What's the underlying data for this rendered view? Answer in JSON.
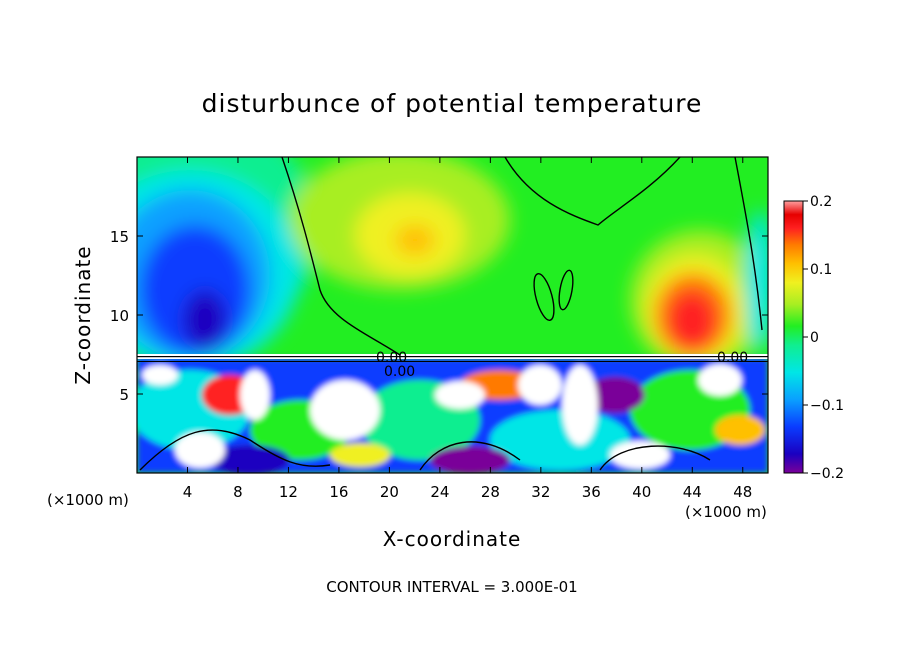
{
  "chart_data": {
    "type": "heatmap",
    "title": "disturbunce of potential temperature",
    "xlabel": "X-coordinate",
    "ylabel": "Z-coordinate",
    "x_unit": "(×1000 m)",
    "x_unit_right": "(×1000 m)",
    "footer": "CONTOUR INTERVAL = 3.000E-01",
    "xlim": [
      0,
      50
    ],
    "ylim": [
      0,
      20
    ],
    "x_ticks": [
      4,
      8,
      12,
      16,
      20,
      24,
      28,
      32,
      36,
      40,
      44,
      48
    ],
    "y_ticks": [
      5,
      10,
      15
    ],
    "colorbar": {
      "range": [
        -0.2,
        0.2
      ],
      "ticks": [
        {
          "value": 0.2,
          "label": "0.2"
        },
        {
          "value": 0.1,
          "label": "0.1"
        },
        {
          "value": 0,
          "label": "0"
        },
        {
          "value": -0.1,
          "label": "−0.1"
        },
        {
          "value": -0.2,
          "label": "−0.2"
        }
      ]
    },
    "contour_labels": [
      {
        "x": 20.5,
        "z": 7.3,
        "text": "0.00"
      },
      {
        "x": 21.0,
        "z": 6.4,
        "text": "0.00"
      },
      {
        "x": 47.0,
        "z": 7.2,
        "text": "0.00"
      }
    ],
    "features": [
      {
        "name": "cold-core-upper-left",
        "x": 5,
        "z": 11,
        "value": -0.19
      },
      {
        "name": "warm-core-upper-right",
        "x": 44.5,
        "z": 10,
        "value": 0.16
      },
      {
        "name": "weak-warm-upper-center",
        "x": 22.5,
        "z": 14.5,
        "value": 0.07
      },
      {
        "name": "neutral-upper-right",
        "x": 36,
        "z": 17,
        "value": 0.0
      },
      {
        "name": "interface-layer",
        "z": 7.3
      }
    ]
  }
}
